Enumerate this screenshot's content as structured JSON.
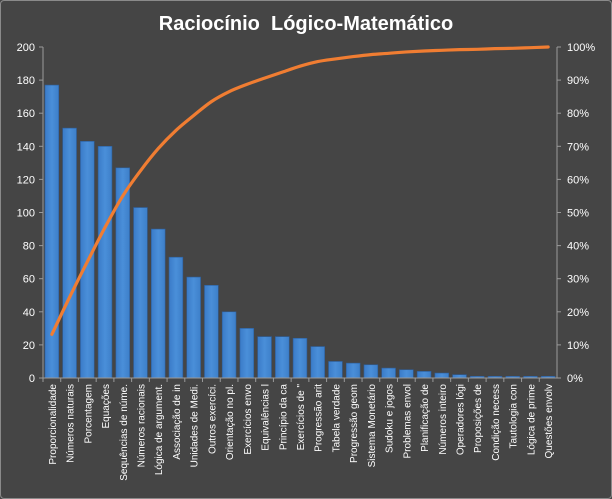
{
  "chart_data": {
    "type": "bar",
    "title": "Raciocínio  Lógico-Matemático",
    "categories": [
      "Proporcionalidade",
      "Números naturais",
      "Porcentagem",
      "Equações",
      "Sequências de núme.",
      "Números racionais",
      "Lógica de argument.",
      "Associação de in",
      "Unidades de Medi.",
      "Outros exercíci.",
      "Orientação no pl.",
      "Exercícios envo",
      "Equivalências l",
      "Princípio da ca",
      "Exercícios de \"",
      "Progressão arit",
      "Tabela verdade",
      "Progressão geom",
      "Sistema Monetário",
      "Sudoku e jogos",
      "Problemas envol",
      "Planificação de",
      "Números inteiro",
      "Operadores lógi",
      "Proposições de",
      "Condição necess",
      "Tautologia con",
      "Lógica de prime",
      "Questões envolv"
    ],
    "series": [
      {
        "type": "bar",
        "axis": "left",
        "values": [
          177,
          151,
          143,
          140,
          127,
          103,
          90,
          73,
          61,
          56,
          40,
          30,
          25,
          25,
          24,
          19,
          10,
          9,
          8,
          6,
          5,
          4,
          3,
          2,
          1,
          1,
          1,
          1,
          1
        ]
      },
      {
        "type": "line",
        "axis": "right",
        "values": [
          13.2,
          24.4,
          35.1,
          45.5,
          55.0,
          62.6,
          69.3,
          74.8,
          79.3,
          83.5,
          86.5,
          88.7,
          90.6,
          92.4,
          94.2,
          95.6,
          96.4,
          97.1,
          97.7,
          98.1,
          98.5,
          98.8,
          99.0,
          99.2,
          99.3,
          99.5,
          99.6,
          99.8,
          100
        ]
      }
    ],
    "ylim": [
      0,
      200
    ],
    "yticks": [
      "0",
      "20",
      "40",
      "60",
      "80",
      "100",
      "120",
      "140",
      "160",
      "180",
      "200"
    ],
    "y2lim": [
      0,
      100
    ],
    "y2ticks": [
      "0%",
      "10%",
      "20%",
      "30%",
      "40%",
      "50%",
      "60%",
      "70%",
      "80%",
      "90%",
      "100%"
    ],
    "grid": false,
    "colors": {
      "bar": "#4a8fd9",
      "bar_edge": "#2e5f9c",
      "line": "#f07d32",
      "text": "#ffffff",
      "axis": "#9a9a9a",
      "background": "#454545"
    }
  }
}
